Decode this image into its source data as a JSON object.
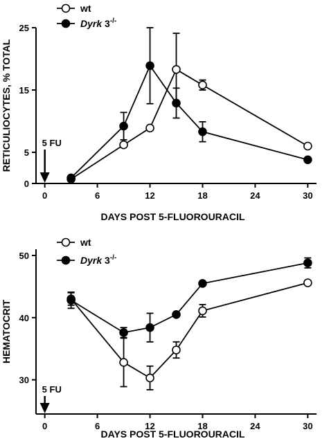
{
  "chart_data": [
    {
      "type": "line",
      "title": "",
      "xlabel": "DAYS POST 5-FLUOROURACIL",
      "ylabel": "RETICULIOCYTES, % TOTAL",
      "xlim": [
        -1,
        31
      ],
      "ylim": [
        0,
        25
      ],
      "xticks": [
        0,
        6,
        12,
        18,
        24,
        30
      ],
      "xtick_labels": [
        "0",
        "6",
        "12",
        "18",
        "24",
        "30"
      ],
      "yticks": [
        0,
        5,
        15,
        25
      ],
      "ytick_labels": [
        "0",
        "5",
        "15",
        "25"
      ],
      "annotation": {
        "text": "5 FU",
        "x": 0
      },
      "legend": [
        {
          "name": "wt",
          "suffix": "",
          "marker": "open"
        },
        {
          "name": "Dyrk",
          "suffix": " 3",
          "sup": "-/-",
          "marker": "filled"
        }
      ],
      "series": [
        {
          "name": "wt",
          "marker": "open",
          "x": [
            3,
            9,
            12,
            15,
            18,
            30
          ],
          "y": [
            0.7,
            6.2,
            8.9,
            18.3,
            15.8,
            6.0
          ],
          "err": [
            0,
            0,
            0,
            5.8,
            0.8,
            0
          ]
        },
        {
          "name": "Dyrk 3-/-",
          "marker": "filled",
          "x": [
            3,
            9,
            12,
            15,
            18,
            30
          ],
          "y": [
            0.9,
            9.2,
            18.9,
            12.9,
            8.3,
            3.8
          ],
          "err": [
            0,
            2.2,
            6.1,
            2.4,
            1.6,
            0
          ]
        }
      ]
    },
    {
      "type": "line",
      "title": "",
      "xlabel": "DAYS POST 5-FLUOROURACIL",
      "ylabel": "HEMATOCRIT",
      "xlim": [
        -1,
        31
      ],
      "ylim": [
        24.5,
        51
      ],
      "xticks": [
        0,
        6,
        12,
        18,
        24,
        30
      ],
      "xtick_labels": [
        "0",
        "6",
        "12",
        "18",
        "24",
        "30"
      ],
      "yticks": [
        30,
        40,
        50
      ],
      "ytick_labels": [
        "30",
        "40",
        "50"
      ],
      "annotation": {
        "text": "5 FU",
        "x": 0
      },
      "legend": [
        {
          "name": "wt",
          "suffix": "",
          "marker": "open"
        },
        {
          "name": "Dyrk",
          "suffix": " 3",
          "sup": "-/-",
          "marker": "filled"
        }
      ],
      "series": [
        {
          "name": "wt",
          "marker": "open",
          "x": [
            3,
            9,
            12,
            15,
            18,
            30
          ],
          "y": [
            43.0,
            32.8,
            30.3,
            34.8,
            41.1,
            45.6
          ],
          "err": [
            1.0,
            3.9,
            1.9,
            1.3,
            1.0,
            0
          ]
        },
        {
          "name": "Dyrk 3-/-",
          "marker": "filled",
          "x": [
            3,
            9,
            12,
            15,
            18,
            30
          ],
          "y": [
            42.8,
            37.6,
            38.4,
            40.5,
            45.5,
            48.8
          ],
          "err": [
            1.3,
            0.8,
            2.3,
            0,
            0,
            0.8
          ]
        }
      ]
    }
  ]
}
